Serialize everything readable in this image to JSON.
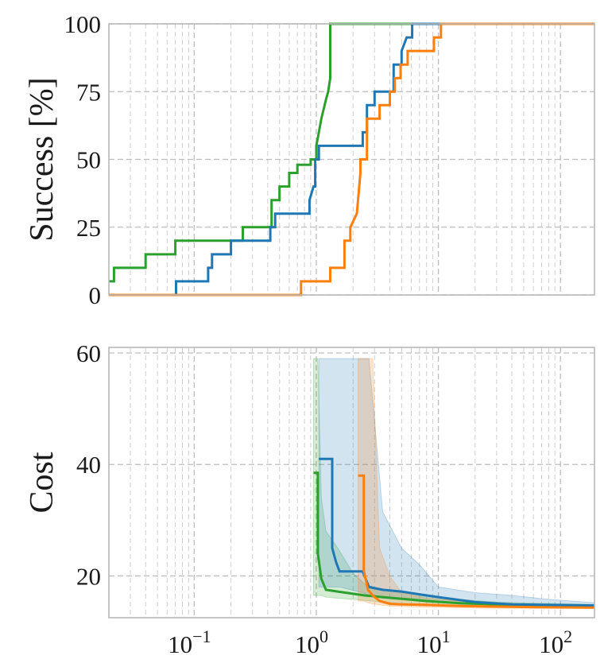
{
  "chart_data": [
    {
      "type": "line",
      "subplot": "top",
      "ylabel": "Success [%]",
      "xlabel": "",
      "xscale": "log",
      "xlim": [
        0.02,
        190
      ],
      "ylim": [
        0,
        100
      ],
      "yticks": [
        0,
        25,
        50,
        75,
        100
      ],
      "ytick_labels": [
        "0",
        "25",
        "50",
        "75",
        "100"
      ],
      "grid": true,
      "series": [
        {
          "color": "#2ca02c",
          "x": [
            0.02,
            0.022,
            0.022,
            0.04,
            0.04,
            0.07,
            0.07,
            0.25,
            0.25,
            0.43,
            0.43,
            0.5,
            0.5,
            0.6,
            0.6,
            0.7,
            0.7,
            0.9,
            0.9,
            1.0,
            1.0,
            1.05,
            1.1,
            1.2,
            1.25,
            1.3,
            1.3,
            190
          ],
          "y": [
            5,
            5,
            10,
            10,
            15,
            15,
            20,
            20,
            25,
            25,
            35,
            35,
            40,
            40,
            45,
            45,
            48,
            48,
            50,
            50,
            55,
            60,
            65,
            72,
            75,
            80,
            100,
            100
          ]
        },
        {
          "color": "#1f77b4",
          "x": [
            0.02,
            0.071,
            0.071,
            0.11,
            0.13,
            0.13,
            0.14,
            0.14,
            0.2,
            0.2,
            0.25,
            0.25,
            0.42,
            0.42,
            0.46,
            0.46,
            0.88,
            0.88,
            0.95,
            0.98,
            0.98,
            1.05,
            1.05,
            1.4,
            1.4,
            2.4,
            2.4,
            2.6,
            2.6,
            3.0,
            3.0,
            4.3,
            4.3,
            5.0,
            5.0,
            5.5,
            6.1,
            6.1,
            190
          ],
          "y": [
            0,
            0,
            5,
            5,
            5,
            10,
            10,
            15,
            15,
            20,
            20,
            20,
            20,
            25,
            25,
            30,
            30,
            35,
            40,
            40,
            50,
            50,
            55,
            55,
            55,
            55,
            60,
            60,
            70,
            70,
            75,
            75,
            85,
            85,
            90,
            95,
            95,
            100,
            100
          ]
        },
        {
          "color": "#ff7f0e",
          "x": [
            0.02,
            0.75,
            0.75,
            1.3,
            1.3,
            1.7,
            1.7,
            1.9,
            1.9,
            2.15,
            2.3,
            2.3,
            2.6,
            2.6,
            3.3,
            3.3,
            4.0,
            4.0,
            4.4,
            4.4,
            4.9,
            4.9,
            5.6,
            5.6,
            9.2,
            9.2,
            10.3,
            10.5,
            10.5,
            190
          ],
          "y": [
            0,
            0,
            5,
            5,
            10,
            10,
            20,
            20,
            25,
            30,
            45,
            50,
            50,
            65,
            65,
            70,
            70,
            75,
            75,
            80,
            80,
            85,
            85,
            90,
            90,
            95,
            95,
            95,
            100,
            100
          ]
        }
      ]
    },
    {
      "type": "area",
      "subplot": "bottom",
      "ylabel": "Cost",
      "xlabel": "",
      "xscale": "log",
      "xlim": [
        0.02,
        190
      ],
      "ylim": [
        12.5,
        61
      ],
      "yticks": [
        20,
        40,
        60
      ],
      "ytick_labels": [
        "20",
        "40",
        "60"
      ],
      "xticks": [
        0.1,
        1,
        10,
        100
      ],
      "xtick_labels": [
        {
          "base": "10",
          "exp": "−1"
        },
        {
          "base": "10",
          "exp": "0"
        },
        {
          "base": "10",
          "exp": "1"
        },
        {
          "base": "10",
          "exp": "2"
        }
      ],
      "grid": true,
      "series": [
        {
          "color": "#2ca02c",
          "x": [
            0.95,
            1.03,
            1.03,
            1.1,
            1.2,
            1.5,
            2.0,
            2.5,
            3.5,
            5.0,
            8.0,
            15,
            30,
            60,
            190
          ],
          "y": [
            38.5,
            38.5,
            24,
            19.5,
            17.5,
            17.2,
            16.8,
            16.5,
            16.2,
            15.9,
            15.5,
            15.1,
            14.9,
            14.7,
            14.6
          ],
          "upper": [
            59,
            59,
            59,
            34,
            28,
            25,
            20.5,
            18.5,
            17.5,
            17,
            16.5,
            15.8,
            15.3,
            15.1,
            14.9
          ],
          "lower": [
            16.5,
            16.5,
            16.5,
            16.5,
            16.2,
            16,
            15.8,
            15.6,
            15.3,
            15,
            14.8,
            14.6,
            14.5,
            14.4,
            14.4
          ]
        },
        {
          "color": "#1f77b4",
          "x": [
            1.05,
            1.35,
            1.35,
            1.45,
            1.55,
            2.4,
            2.7,
            3.5,
            5.0,
            7.0,
            10,
            20,
            40,
            80,
            190
          ],
          "y": [
            41,
            41,
            25,
            22.5,
            20.8,
            20.8,
            18,
            17.5,
            17.2,
            16.7,
            16.2,
            15.3,
            14.9,
            14.8,
            14.7
          ],
          "upper": [
            59,
            59,
            59,
            59,
            59,
            59,
            59,
            31.5,
            25,
            22,
            18,
            17,
            16.5,
            15.8,
            15.2
          ],
          "lower": [
            18,
            18,
            18,
            18,
            18,
            17,
            16.5,
            16,
            15.8,
            15.5,
            15.2,
            15,
            14.7,
            14.5,
            14.4
          ]
        },
        {
          "color": "#ff7f0e",
          "x": [
            2.2,
            2.45,
            2.45,
            2.65,
            2.9,
            3.3,
            4.0,
            5.0,
            8.0,
            15,
            30,
            60,
            190
          ],
          "y": [
            38,
            38,
            21,
            17.5,
            16.5,
            15.5,
            15.0,
            14.9,
            14.8,
            14.6,
            14.5,
            14.4,
            14.3
          ],
          "upper": [
            59,
            59,
            59,
            59,
            59,
            25,
            20,
            17,
            16,
            15.5,
            15.1,
            14.9,
            14.7
          ],
          "lower": [
            15.5,
            15.5,
            15.5,
            15.2,
            15,
            14.8,
            14.6,
            14.5,
            14.4,
            14.3,
            14.2,
            14.2,
            14.2
          ]
        }
      ]
    }
  ]
}
